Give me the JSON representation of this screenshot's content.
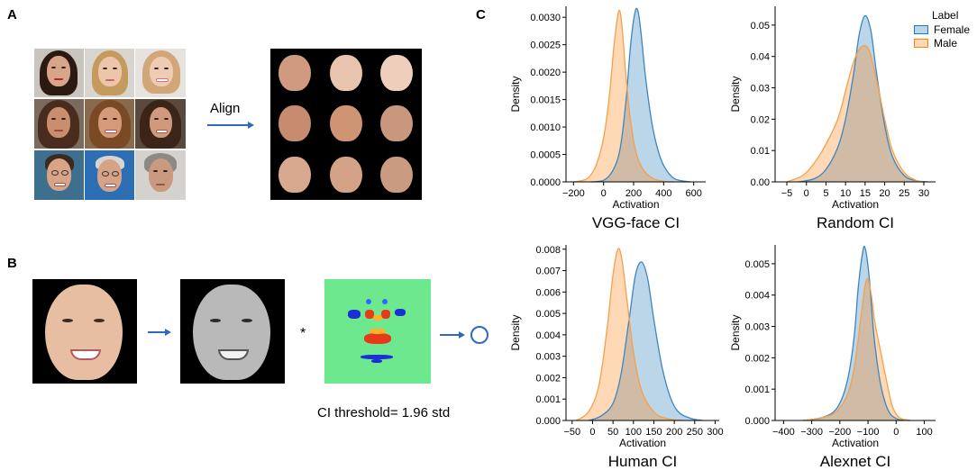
{
  "panels": {
    "a": {
      "letter": "A",
      "align_label": "Align"
    },
    "b": {
      "letter": "B",
      "operator": "*",
      "ci_threshold": "CI threshold= 1.96 std"
    },
    "c": {
      "letter": "C"
    }
  },
  "legend": {
    "title": "Label",
    "entries": [
      "Female",
      "Male"
    ]
  },
  "colors": {
    "female": "#1f77b4",
    "male": "#ff7f0e",
    "overlap": "#b3b3b3",
    "arrow": "#2e68c0"
  },
  "chart_data": [
    {
      "type": "area",
      "title": "VGG-face CI",
      "xlabel": "Activation",
      "ylabel": "Density",
      "xlim": [
        -250,
        680
      ],
      "ylim": [
        0,
        0.0032
      ],
      "xticks": [
        "−200",
        "0",
        "200",
        "400",
        "600"
      ],
      "xtick_values": [
        -200,
        0,
        200,
        400,
        600
      ],
      "yticks": [
        "0.0000",
        "0.0005",
        "0.0010",
        "0.0015",
        "0.0020",
        "0.0025",
        "0.0030"
      ],
      "ytick_values": [
        0,
        0.0005,
        0.001,
        0.0015,
        0.002,
        0.0025,
        0.003
      ],
      "series": [
        {
          "name": "Female",
          "x": [
            -80,
            0,
            60,
            110,
            150,
            180,
            210,
            230,
            250,
            280,
            320,
            360,
            400,
            460,
            520,
            580
          ],
          "values": [
            0.0,
            3e-05,
            0.0002,
            0.0006,
            0.0015,
            0.0025,
            0.0031,
            0.0031,
            0.0027,
            0.0019,
            0.0011,
            0.0006,
            0.0003,
            8e-05,
            2e-05,
            0.0
          ]
        },
        {
          "name": "Male",
          "x": [
            -200,
            -150,
            -100,
            -50,
            0,
            40,
            70,
            100,
            120,
            150,
            180,
            220,
            270,
            330,
            400,
            470
          ],
          "values": [
            0.0,
            2e-05,
            8e-05,
            0.0003,
            0.0008,
            0.0016,
            0.0025,
            0.0031,
            0.0029,
            0.0019,
            0.0011,
            0.0005,
            0.0002,
            6e-05,
            1e-05,
            0.0
          ]
        }
      ]
    },
    {
      "type": "area",
      "title": "Random CI",
      "xlabel": "Activation",
      "ylabel": "Density",
      "xlim": [
        -8,
        33
      ],
      "ylim": [
        0,
        0.056
      ],
      "xticks": [
        "−5",
        "0",
        "5",
        "10",
        "15",
        "20",
        "25",
        "30"
      ],
      "xtick_values": [
        -5,
        0,
        5,
        10,
        15,
        20,
        25,
        30
      ],
      "yticks": [
        "0.00",
        "0.01",
        "0.02",
        "0.03",
        "0.04",
        "0.05"
      ],
      "ytick_values": [
        0,
        0.01,
        0.02,
        0.03,
        0.04,
        0.05
      ],
      "series": [
        {
          "name": "Female",
          "x": [
            -2,
            2,
            5,
            8,
            10,
            12,
            13.5,
            15,
            16.5,
            18,
            20,
            22,
            25,
            28,
            31
          ],
          "values": [
            0.0,
            0.001,
            0.004,
            0.011,
            0.02,
            0.034,
            0.047,
            0.053,
            0.048,
            0.034,
            0.018,
            0.008,
            0.002,
            0.0004,
            0.0
          ]
        },
        {
          "name": "Male",
          "x": [
            -5,
            -1,
            2,
            5,
            8,
            10,
            12,
            14,
            16,
            18,
            20,
            22,
            25,
            28,
            30
          ],
          "values": [
            0.0,
            0.002,
            0.006,
            0.012,
            0.02,
            0.029,
            0.038,
            0.043,
            0.042,
            0.032,
            0.02,
            0.01,
            0.003,
            0.0005,
            0.0
          ]
        }
      ]
    },
    {
      "type": "area",
      "title": "Human CI",
      "xlabel": "Activation",
      "ylabel": "Density",
      "xlim": [
        -65,
        310
      ],
      "ylim": [
        0,
        0.0082
      ],
      "xticks": [
        "−50",
        "0",
        "50",
        "100",
        "150",
        "200",
        "250",
        "300"
      ],
      "xtick_values": [
        -50,
        0,
        50,
        100,
        150,
        200,
        250,
        300
      ],
      "yticks": [
        "0.000",
        "0.001",
        "0.002",
        "0.003",
        "0.004",
        "0.005",
        "0.006",
        "0.007",
        "0.008"
      ],
      "ytick_values": [
        0,
        0.001,
        0.002,
        0.003,
        0.004,
        0.005,
        0.006,
        0.007,
        0.008
      ],
      "series": [
        {
          "name": "Female",
          "x": [
            -10,
            20,
            50,
            70,
            90,
            105,
            120,
            135,
            150,
            170,
            190,
            210,
            240,
            270
          ],
          "values": [
            0.0,
            0.0002,
            0.0008,
            0.0022,
            0.0048,
            0.0068,
            0.0074,
            0.0066,
            0.0047,
            0.0025,
            0.0011,
            0.0004,
            0.0001,
            0.0
          ]
        },
        {
          "name": "Male",
          "x": [
            -40,
            -10,
            15,
            35,
            50,
            62,
            72,
            85,
            100,
            120,
            150,
            180,
            220
          ],
          "values": [
            0.0,
            0.0004,
            0.0016,
            0.0042,
            0.0068,
            0.008,
            0.0075,
            0.0055,
            0.0032,
            0.0014,
            0.0004,
            0.0001,
            0.0
          ]
        }
      ]
    },
    {
      "type": "area",
      "title": "Alexnet CI",
      "xlabel": "Activation",
      "ylabel": "Density",
      "xlim": [
        -430,
        140
      ],
      "ylim": [
        0,
        0.0056
      ],
      "xticks": [
        "−400",
        "−300",
        "−200",
        "−100",
        "0",
        "100"
      ],
      "xtick_values": [
        -400,
        -300,
        -200,
        -100,
        0,
        100
      ],
      "yticks": [
        "0.000",
        "0.001",
        "0.002",
        "0.003",
        "0.004",
        "0.005"
      ],
      "ytick_values": [
        0,
        0.001,
        0.002,
        0.003,
        0.004,
        0.005
      ],
      "series": [
        {
          "name": "Female",
          "x": [
            -330,
            -260,
            -210,
            -175,
            -150,
            -135,
            -120,
            -110,
            -95,
            -80,
            -60,
            -40,
            -20,
            10,
            50
          ],
          "values": [
            0.0,
            0.0001,
            0.0004,
            0.0012,
            0.0026,
            0.0042,
            0.0053,
            0.0055,
            0.0045,
            0.0028,
            0.0014,
            0.0006,
            0.0002,
            3e-05,
            0.0
          ]
        },
        {
          "name": "Male",
          "x": [
            -330,
            -260,
            -210,
            -170,
            -145,
            -125,
            -110,
            -100,
            -88,
            -75,
            -55,
            -35,
            -15,
            10,
            50
          ],
          "values": [
            0.0,
            0.0001,
            0.0003,
            0.0009,
            0.0019,
            0.0033,
            0.0043,
            0.0045,
            0.004,
            0.0031,
            0.0022,
            0.0013,
            0.0005,
            0.0001,
            0.0
          ]
        }
      ]
    }
  ]
}
